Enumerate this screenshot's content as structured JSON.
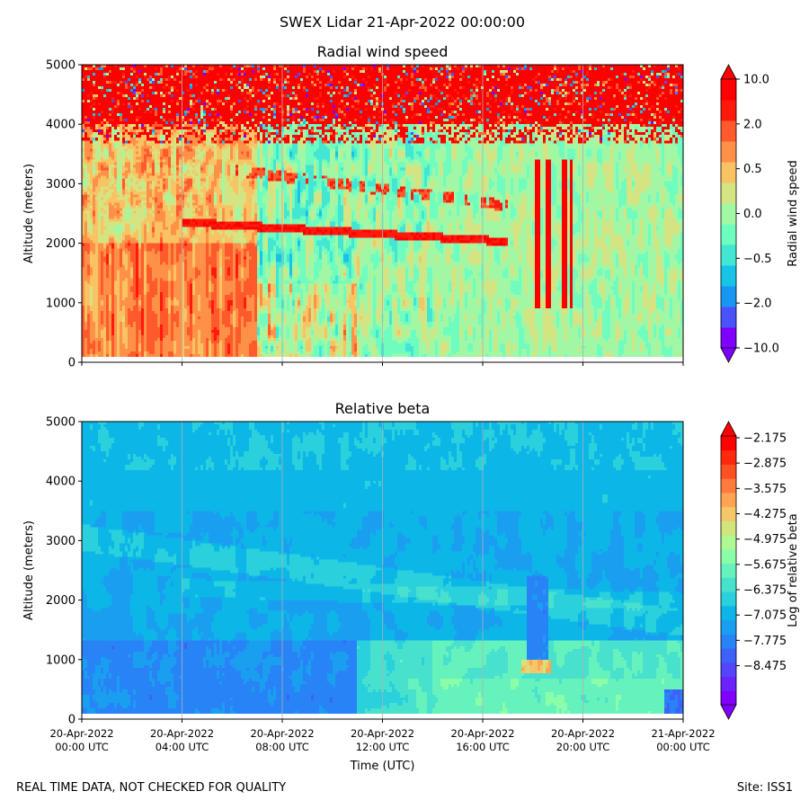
{
  "suptitle": "SWEX Lidar 21-Apr-2022 00:00:00",
  "footer": {
    "left": "REAL TIME DATA, NOT CHECKED FOR QUALITY",
    "right": "Site: ISS1"
  },
  "chart_data": [
    {
      "type": "heatmap",
      "title": "Radial wind speed",
      "xlabel": "",
      "ylabel": "Altitude (meters)",
      "ylim": [
        0,
        5000
      ],
      "xlim": [
        "20-Apr-2022 00:00 UTC",
        "21-Apr-2022 00:00 UTC"
      ],
      "yticks": [
        "0",
        "1000",
        "2000",
        "3000",
        "4000",
        "5000"
      ],
      "xtick_labels_shown": false,
      "grid": "vertical lines at 4-hour ticks",
      "colorbar": {
        "label": "Radial wind speed",
        "scale": "nonlinear (symmetric)",
        "ticks": [
          "10.0",
          "2.0",
          "0.5",
          "0.0",
          "−0.5",
          "−2.0",
          "−10.0"
        ],
        "colors": [
          "#8000ff",
          "#4a52fb",
          "#1996f3",
          "#17c3e6",
          "#42e6d2",
          "#6ffcbf",
          "#a2f7a4",
          "#d4e482",
          "#f9c262",
          "#ff9048",
          "#ff5a2b",
          "#ff1a0d",
          "#ff0000"
        ],
        "extend": "both"
      },
      "description_regions": [
        {
          "time_h": [
            0,
            7
          ],
          "alt_m": [
            100,
            2000
          ],
          "value": "high positive (orange-red)"
        },
        {
          "time_h": [
            0,
            24
          ],
          "alt_m": [
            4000,
            5000
          ],
          "value": "noisy, mostly red"
        },
        {
          "time_h": [
            14,
            24
          ],
          "alt_m": [
            100,
            3800
          ],
          "value": "near zero (green/cyan)"
        },
        {
          "time_h": [
            18,
            19.5
          ],
          "alt_m": [
            900,
            3500
          ],
          "value": "vertical red streaks"
        }
      ]
    },
    {
      "type": "heatmap",
      "title": "Relative beta",
      "xlabel": "Time (UTC)",
      "ylabel": "Altitude (meters)",
      "ylim": [
        0,
        5000
      ],
      "xlim": [
        "20-Apr-2022 00:00 UTC",
        "21-Apr-2022 00:00 UTC"
      ],
      "yticks": [
        "0",
        "1000",
        "2000",
        "3000",
        "4000",
        "5000"
      ],
      "xticks": [
        {
          "date": "20-Apr-2022",
          "time": "00:00 UTC"
        },
        {
          "date": "20-Apr-2022",
          "time": "04:00 UTC"
        },
        {
          "date": "20-Apr-2022",
          "time": "08:00 UTC"
        },
        {
          "date": "20-Apr-2022",
          "time": "12:00 UTC"
        },
        {
          "date": "20-Apr-2022",
          "time": "16:00 UTC"
        },
        {
          "date": "20-Apr-2022",
          "time": "20:00 UTC"
        },
        {
          "date": "21-Apr-2022",
          "time": "00:00 UTC"
        }
      ],
      "grid": "vertical lines at 4-hour ticks",
      "colorbar": {
        "label": "Log of relative beta",
        "scale": "linear",
        "ticks": [
          "−2.175",
          "−2.875",
          "−3.575",
          "−4.275",
          "−4.975",
          "−5.675",
          "−6.375",
          "−7.075",
          "−7.775",
          "−8.475"
        ],
        "colors": [
          "#8000ff",
          "#6a22fe",
          "#5444fc",
          "#3e62f9",
          "#2884f6",
          "#1a9ff0",
          "#0cb7e8",
          "#2ad0dc",
          "#48e1ce",
          "#66f2bc",
          "#8bfca8",
          "#b0f892",
          "#d2e47e",
          "#f4c768",
          "#ffa452",
          "#ff7b3c",
          "#ff5024",
          "#ff2a0e",
          "#ff0000"
        ],
        "extend": "both"
      },
      "description_regions": [
        {
          "time_h": [
            0,
            24
          ],
          "alt_m": [
            3500,
            5000
          ],
          "value": "about -7.0 (cyan-blue)"
        },
        {
          "time_h": [
            2,
            11
          ],
          "alt_m": [
            100,
            1300
          ],
          "value": "about -8.0 (blue)"
        },
        {
          "time_h": [
            11,
            24
          ],
          "alt_m": [
            100,
            1300
          ],
          "value": "about -6.4 (teal-green)"
        },
        {
          "time_h": [
            17.5,
            18.7
          ],
          "alt_m": [
            800,
            1000
          ],
          "value": "about -4.5 (yellow)"
        }
      ]
    }
  ]
}
